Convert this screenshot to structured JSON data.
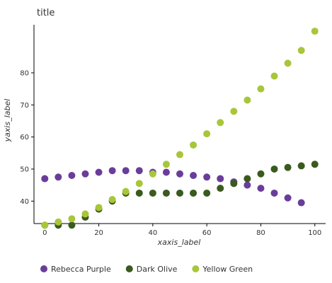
{
  "chart_data": {
    "type": "line",
    "title": "title",
    "xlabel": "xaxis_label",
    "ylabel": "yaxis_label",
    "xlim": [
      -4,
      104
    ],
    "ylim": [
      33,
      95
    ],
    "xticks": [
      0,
      20,
      40,
      60,
      80,
      100
    ],
    "yticks": [
      40,
      50,
      60,
      70,
      80
    ],
    "grid": false,
    "legend_position": "bottom",
    "series": [
      {
        "name": "Rebecca Purple",
        "color": "#6a3d9a",
        "x": [
          0,
          5,
          10,
          15,
          20,
          25,
          30,
          35,
          40,
          45,
          50,
          55,
          60,
          65,
          70,
          75,
          80,
          85,
          90,
          95
        ],
        "y": [
          47,
          47.5,
          48,
          48.5,
          49,
          49.5,
          49.5,
          49.5,
          49,
          49,
          48.5,
          48,
          47.5,
          47,
          46,
          45,
          44,
          42.5,
          41,
          39.5
        ]
      },
      {
        "name": "Dark Olive",
        "color": "#3a5a1e",
        "x": [
          0,
          5,
          10,
          15,
          20,
          25,
          30,
          35,
          40,
          45,
          50,
          55,
          60,
          65,
          70,
          75,
          80,
          85,
          90,
          95,
          100
        ],
        "y": [
          32.5,
          32.5,
          32.5,
          35,
          37.5,
          40,
          42.5,
          42.5,
          42.5,
          42.5,
          42.5,
          42.5,
          42.5,
          44,
          45.5,
          47,
          48.5,
          50,
          50.5,
          51,
          51.5
        ]
      },
      {
        "name": "Yellow Green",
        "color": "#a8c63a",
        "x": [
          0,
          5,
          10,
          15,
          20,
          25,
          30,
          35,
          40,
          45,
          50,
          55,
          60,
          65,
          70,
          75,
          80,
          85,
          90,
          95,
          100
        ],
        "y": [
          32.5,
          33.5,
          34.5,
          36,
          38,
          40.5,
          43,
          45.5,
          48.5,
          51.5,
          54.5,
          57.5,
          61,
          64.5,
          68,
          71.5,
          75,
          79,
          83,
          87,
          93
        ]
      }
    ]
  }
}
